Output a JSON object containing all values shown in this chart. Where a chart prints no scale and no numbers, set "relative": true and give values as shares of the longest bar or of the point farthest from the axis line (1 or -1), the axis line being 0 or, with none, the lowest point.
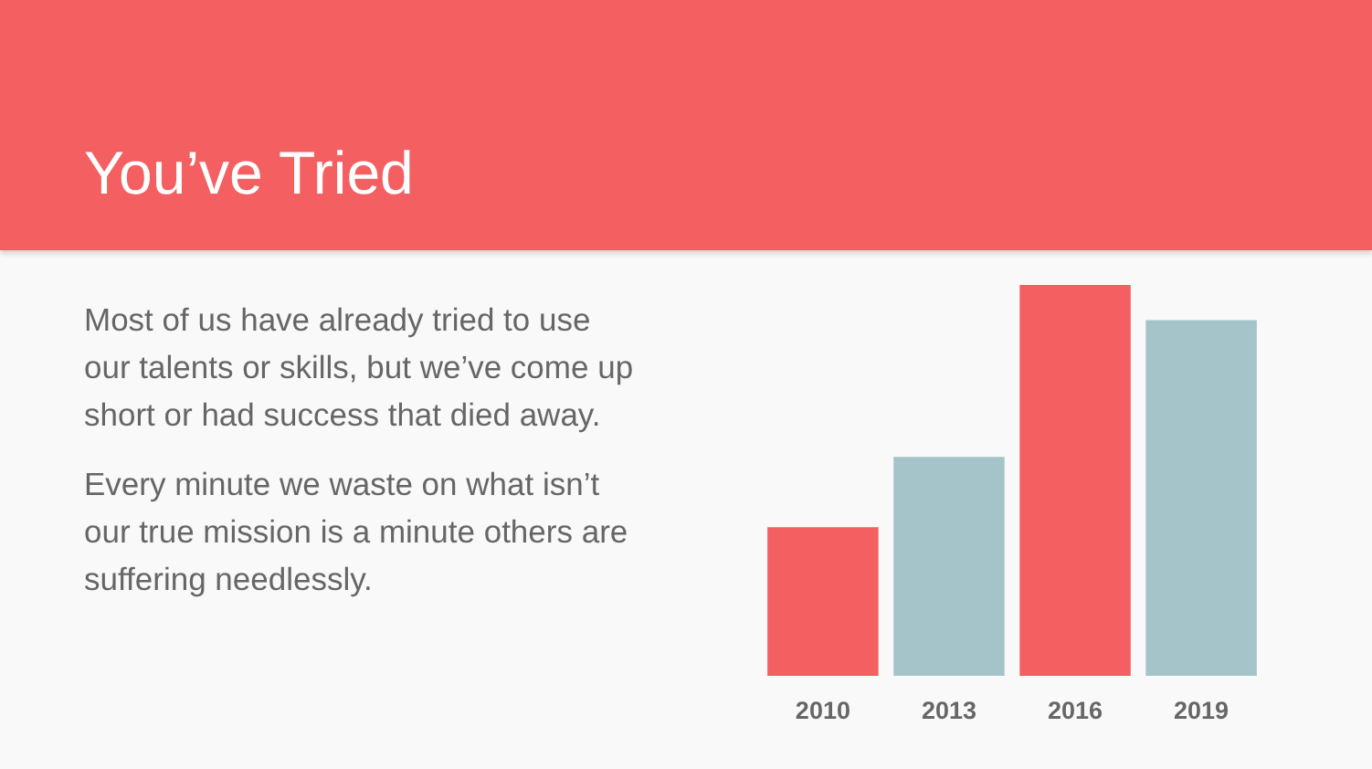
{
  "chart_data": {
    "type": "bar",
    "title": "You’ve Tried",
    "annotations": [
      "Most of us have already tried to use our talents or skills, but we’ve come up short or had success that died away.",
      "Every minute we waste on what isn’t our true mission is a minute others are suffering needlessly."
    ],
    "categories": [
      "2010",
      "2013",
      "2016",
      "2019"
    ],
    "values": [
      0.38,
      0.56,
      1,
      0.91
    ],
    "colors": [
      "#f45f61",
      "#a5c4c9",
      "#f45f61",
      "#a5c4c9"
    ],
    "relative": true,
    "grid": false
  }
}
